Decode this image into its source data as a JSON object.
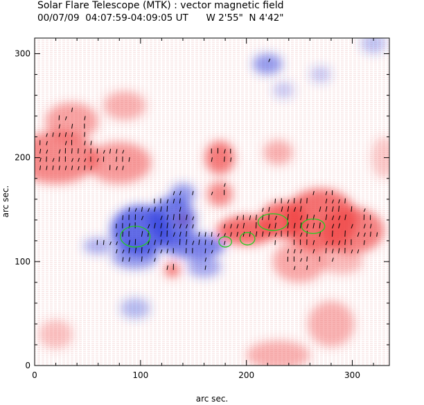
{
  "chart_data": {
    "type": "heatmap",
    "title": "Solar Flare Telescope (MTK) : vector magnetic field",
    "subtitle": "00/07/09  04:07:59-04:09:05 UT      W 2'55\"  N 4'42\"",
    "xlabel": "arc sec.",
    "ylabel": "arc sec.",
    "xlim": [
      0,
      335
    ],
    "ylim": [
      0,
      315
    ],
    "x_ticks": [
      0,
      100,
      200,
      300
    ],
    "y_ticks": [
      0,
      100,
      200,
      300
    ],
    "colors": {
      "positive": "#f04040",
      "negative": "#3040e0",
      "contour": "#22cc22",
      "background": "#ffffff"
    },
    "positive_regions": [
      {
        "x": 20,
        "y": 200,
        "rx": 40,
        "ry": 25,
        "v": 0.7
      },
      {
        "x": 80,
        "y": 195,
        "rx": 30,
        "ry": 20,
        "v": 0.6
      },
      {
        "x": 35,
        "y": 235,
        "rx": 25,
        "ry": 18,
        "v": 0.55
      },
      {
        "x": 85,
        "y": 250,
        "rx": 20,
        "ry": 14,
        "v": 0.45
      },
      {
        "x": 175,
        "y": 200,
        "rx": 14,
        "ry": 16,
        "v": 0.8
      },
      {
        "x": 175,
        "y": 165,
        "rx": 12,
        "ry": 12,
        "v": 0.7
      },
      {
        "x": 200,
        "y": 130,
        "rx": 28,
        "ry": 14,
        "v": 0.9
      },
      {
        "x": 235,
        "y": 140,
        "rx": 22,
        "ry": 18,
        "v": 0.9
      },
      {
        "x": 270,
        "y": 140,
        "rx": 35,
        "ry": 30,
        "v": 0.85
      },
      {
        "x": 300,
        "y": 130,
        "rx": 30,
        "ry": 22,
        "v": 0.75
      },
      {
        "x": 250,
        "y": 100,
        "rx": 25,
        "ry": 20,
        "v": 0.5
      },
      {
        "x": 280,
        "y": 40,
        "rx": 22,
        "ry": 22,
        "v": 0.45
      },
      {
        "x": 230,
        "y": 10,
        "rx": 30,
        "ry": 14,
        "v": 0.45
      },
      {
        "x": 130,
        "y": 92,
        "rx": 7,
        "ry": 7,
        "v": 0.85
      },
      {
        "x": 230,
        "y": 205,
        "rx": 14,
        "ry": 12,
        "v": 0.45
      },
      {
        "x": 20,
        "y": 30,
        "rx": 16,
        "ry": 14,
        "v": 0.35
      },
      {
        "x": 140,
        "y": 140,
        "rx": 8,
        "ry": 6,
        "v": 0.6
      },
      {
        "x": 290,
        "y": 100,
        "rx": 20,
        "ry": 12,
        "v": 0.4
      },
      {
        "x": 330,
        "y": 200,
        "rx": 12,
        "ry": 20,
        "v": 0.3
      }
    ],
    "negative_regions": [
      {
        "x": 100,
        "y": 130,
        "rx": 28,
        "ry": 24,
        "v": 0.9
      },
      {
        "x": 130,
        "y": 140,
        "rx": 22,
        "ry": 22,
        "v": 0.8
      },
      {
        "x": 150,
        "y": 115,
        "rx": 30,
        "ry": 12,
        "v": 0.75
      },
      {
        "x": 95,
        "y": 105,
        "rx": 22,
        "ry": 12,
        "v": 0.6
      },
      {
        "x": 160,
        "y": 95,
        "rx": 16,
        "ry": 10,
        "v": 0.5
      },
      {
        "x": 140,
        "y": 165,
        "rx": 12,
        "ry": 10,
        "v": 0.6
      },
      {
        "x": 60,
        "y": 115,
        "rx": 14,
        "ry": 8,
        "v": 0.45
      },
      {
        "x": 220,
        "y": 290,
        "rx": 14,
        "ry": 10,
        "v": 0.6
      },
      {
        "x": 95,
        "y": 55,
        "rx": 14,
        "ry": 10,
        "v": 0.4
      },
      {
        "x": 320,
        "y": 310,
        "rx": 12,
        "ry": 10,
        "v": 0.35
      },
      {
        "x": 235,
        "y": 265,
        "rx": 10,
        "ry": 8,
        "v": 0.3
      },
      {
        "x": 270,
        "y": 280,
        "rx": 10,
        "ry": 8,
        "v": 0.3
      }
    ],
    "contours": [
      {
        "x": 95,
        "y": 124,
        "rx": 14,
        "ry": 10
      },
      {
        "x": 225,
        "y": 138,
        "rx": 14,
        "ry": 8
      },
      {
        "x": 263,
        "y": 134,
        "rx": 11,
        "ry": 7
      },
      {
        "x": 201,
        "y": 122,
        "rx": 7,
        "ry": 6
      },
      {
        "x": 180,
        "y": 119,
        "rx": 6,
        "ry": 5
      }
    ]
  }
}
